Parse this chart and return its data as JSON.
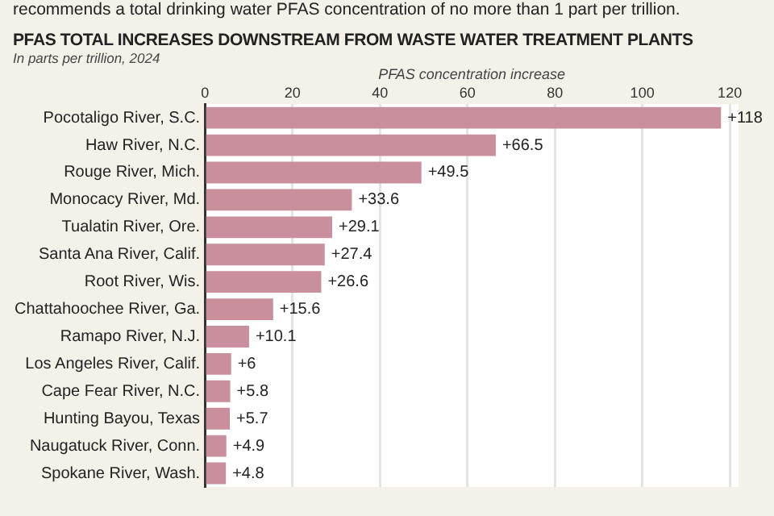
{
  "chart_data": {
    "type": "bar",
    "orientation": "horizontal",
    "title": "PFAS TOTAL INCREASES DOWNSTREAM FROM WASTE WATER TREATMENT PLANTS",
    "subtitle": "In parts per trillion, 2024",
    "xlabel": "PFAS concentration increase",
    "annotations": [
      "recommends a total drinking water PFAS concentration of no more than 1 part per trillion."
    ],
    "categories": [
      "Pocotaligo River, S.C.",
      "Haw River, N.C.",
      "Rouge River, Mich.",
      "Monocacy River, Md.",
      "Tualatin River, Ore.",
      "Santa Ana River, Calif.",
      "Root River, Wis.",
      "Chattahoochee River, Ga.",
      "Ramapo River, N.J.",
      "Los Angeles River, Calif.",
      "Cape Fear River, N.C.",
      "Hunting Bayou, Texas",
      "Naugatuck River, Conn.",
      "Spokane River, Wash."
    ],
    "values": [
      118,
      66.5,
      49.5,
      33.6,
      29.1,
      27.4,
      26.6,
      15.6,
      10.1,
      6,
      5.8,
      5.7,
      4.9,
      4.8
    ],
    "value_labels": [
      "+118",
      "+66.5",
      "+49.5",
      "+33.6",
      "+29.1",
      "+27.4",
      "+26.6",
      "+15.6",
      "+10.1",
      "+6",
      "+5.8",
      "+5.7",
      "+4.9",
      "+4.8"
    ],
    "color": "#c98f9c",
    "xlim": [
      0,
      122
    ],
    "xticks": [
      0,
      20,
      40,
      60,
      80,
      100,
      120
    ],
    "grid": "x"
  }
}
